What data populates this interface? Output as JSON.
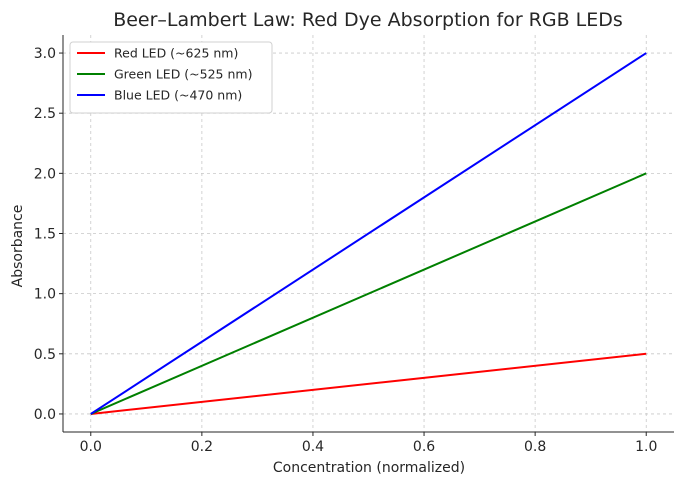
{
  "chart_data": {
    "type": "line",
    "title": "Beer–Lambert Law: Red Dye Absorption for RGB LEDs",
    "xlabel": "Concentration (normalized)",
    "ylabel": "Absorbance",
    "xlim": [
      -0.05,
      1.05
    ],
    "ylim": [
      -0.15,
      3.15
    ],
    "xticks": [
      0.0,
      0.2,
      0.4,
      0.6,
      0.8,
      1.0
    ],
    "xtick_labels": [
      "0.0",
      "0.2",
      "0.4",
      "0.6",
      "0.8",
      "1.0"
    ],
    "yticks": [
      0.0,
      0.5,
      1.0,
      1.5,
      2.0,
      2.5,
      3.0
    ],
    "ytick_labels": [
      "0.0",
      "0.5",
      "1.0",
      "1.5",
      "2.0",
      "2.5",
      "3.0"
    ],
    "grid": true,
    "legend_position": "top-left",
    "series": [
      {
        "name": "Red LED (~625 nm)",
        "color": "#ff0000",
        "x": [
          0.0,
          1.0
        ],
        "y": [
          0.0,
          0.5
        ]
      },
      {
        "name": "Green LED (~525 nm)",
        "color": "#008000",
        "x": [
          0.0,
          1.0
        ],
        "y": [
          0.0,
          2.0
        ]
      },
      {
        "name": "Blue LED (~470 nm)",
        "color": "#0000ff",
        "x": [
          0.0,
          1.0
        ],
        "y": [
          0.0,
          3.0
        ]
      }
    ]
  }
}
